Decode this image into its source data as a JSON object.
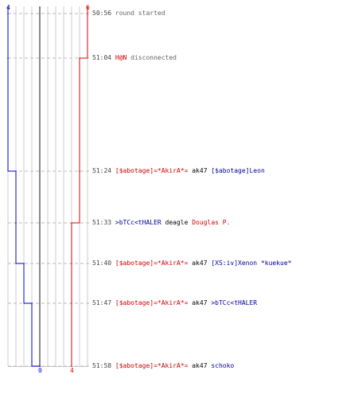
{
  "scale": {
    "top_left_score": "4",
    "top_right_score": "6",
    "bottom_left_score": "0",
    "bottom_right_score": "4",
    "blue_color": "#0000cc",
    "red_color": "#dd0000"
  },
  "events": [
    {
      "time": "50:56",
      "parts": [
        {
          "text": "round started",
          "cls": "msg"
        }
      ]
    },
    {
      "time": "51:04",
      "parts": [
        {
          "text": "H@N",
          "cls": "c-red"
        },
        {
          "text": " disconnected",
          "cls": "msg"
        }
      ]
    },
    {
      "time": "51:24",
      "parts": [
        {
          "text": "[$abotage]=*AkirA*=",
          "cls": "c-red"
        },
        {
          "text": " ak47 ",
          "cls": "kw"
        },
        {
          "text": "[$abotage]Leon",
          "cls": "c-blue"
        }
      ]
    },
    {
      "time": "51:33",
      "parts": [
        {
          "text": ">bTCc<tHALER",
          "cls": "c-blue"
        },
        {
          "text": " deagle ",
          "cls": "kw"
        },
        {
          "text": "Douglas P.",
          "cls": "c-red"
        }
      ]
    },
    {
      "time": "51:40",
      "parts": [
        {
          "text": "[$abotage]=*AkirA*=",
          "cls": "c-red"
        },
        {
          "text": " ak47 ",
          "cls": "kw"
        },
        {
          "text": "[XS:iv]Xenon *kuekue*",
          "cls": "c-blue"
        }
      ]
    },
    {
      "time": "51:47",
      "parts": [
        {
          "text": "[$abotage]=*AkirA*=",
          "cls": "c-red"
        },
        {
          "text": " ak47 ",
          "cls": "kw"
        },
        {
          "text": ">bTCc<tHALER",
          "cls": "c-blue"
        }
      ]
    },
    {
      "time": "51:58",
      "parts": [
        {
          "text": "[$abotage]=*AkirA*=",
          "cls": "c-red"
        },
        {
          "text": " ak47 ",
          "cls": "kw"
        },
        {
          "text": "schoko",
          "cls": "c-blue"
        }
      ]
    }
  ],
  "chart_data": {
    "type": "line",
    "x": [
      "50:56",
      "51:04",
      "51:24",
      "51:33",
      "51:40",
      "51:47",
      "51:58"
    ],
    "series": [
      {
        "values": [
          4,
          4,
          3,
          3,
          2,
          1,
          0
        ],
        "color": "#0000cc"
      },
      {
        "values": [
          6,
          5,
          5,
          4,
          4,
          4,
          4
        ],
        "color": "#dd0000"
      }
    ],
    "ylim": [
      0,
      6
    ],
    "grid": true
  }
}
